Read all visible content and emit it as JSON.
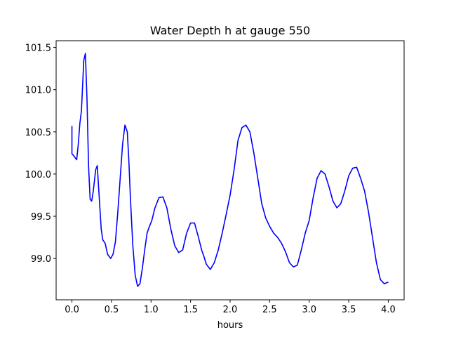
{
  "chart_data": {
    "type": "line",
    "title": "Water Depth h at gauge 550",
    "xlabel": "hours",
    "ylabel": "",
    "xlim": [
      -0.2,
      4.2
    ],
    "ylim": [
      98.51,
      101.58
    ],
    "xticks": [
      0.0,
      0.5,
      1.0,
      1.5,
      2.0,
      2.5,
      3.0,
      3.5,
      4.0
    ],
    "xtick_labels": [
      "0.0",
      "0.5",
      "1.0",
      "1.5",
      "2.0",
      "2.5",
      "3.0",
      "3.5",
      "4.0"
    ],
    "yticks": [
      99.0,
      99.5,
      100.0,
      100.5,
      101.0,
      101.5
    ],
    "ytick_labels": [
      "99.0",
      "99.5",
      "100.0",
      "100.5",
      "101.0",
      "101.5"
    ],
    "grid": false,
    "series": [
      {
        "color": "#0000ff",
        "x": [
          0.0,
          0.0,
          0.02,
          0.06,
          0.08,
          0.1,
          0.12,
          0.15,
          0.17,
          0.19,
          0.21,
          0.23,
          0.25,
          0.27,
          0.3,
          0.32,
          0.34,
          0.37,
          0.39,
          0.42,
          0.45,
          0.49,
          0.52,
          0.55,
          0.58,
          0.61,
          0.64,
          0.67,
          0.7,
          0.72,
          0.74,
          0.77,
          0.8,
          0.83,
          0.86,
          0.89,
          0.92,
          0.95,
          0.98,
          1.01,
          1.05,
          1.1,
          1.15,
          1.2,
          1.25,
          1.3,
          1.35,
          1.4,
          1.45,
          1.5,
          1.55,
          1.6,
          1.64,
          1.67,
          1.7,
          1.75,
          1.8,
          1.85,
          1.9,
          1.95,
          2.0,
          2.05,
          2.1,
          2.15,
          2.2,
          2.25,
          2.3,
          2.35,
          2.4,
          2.45,
          2.5,
          2.55,
          2.6,
          2.65,
          2.7,
          2.75,
          2.8,
          2.85,
          2.9,
          2.95,
          3.0,
          3.05,
          3.1,
          3.15,
          3.2,
          3.25,
          3.3,
          3.35,
          3.4,
          3.45,
          3.5,
          3.55,
          3.6,
          3.65,
          3.7,
          3.75,
          3.8,
          3.85,
          3.9,
          3.95,
          4.0
        ],
        "y": [
          100.57,
          100.24,
          100.22,
          100.17,
          100.35,
          100.6,
          100.75,
          101.35,
          101.43,
          100.9,
          100.1,
          99.7,
          99.68,
          99.8,
          100.05,
          100.1,
          99.8,
          99.35,
          99.22,
          99.18,
          99.05,
          99.0,
          99.05,
          99.2,
          99.55,
          99.95,
          100.35,
          100.58,
          100.5,
          100.15,
          99.7,
          99.15,
          98.8,
          98.67,
          98.7,
          98.88,
          99.1,
          99.3,
          99.38,
          99.45,
          99.6,
          99.72,
          99.73,
          99.6,
          99.35,
          99.15,
          99.07,
          99.1,
          99.3,
          99.42,
          99.42,
          99.25,
          99.1,
          99.02,
          98.93,
          98.87,
          98.95,
          99.1,
          99.3,
          99.52,
          99.75,
          100.05,
          100.4,
          100.55,
          100.58,
          100.5,
          100.25,
          99.95,
          99.65,
          99.48,
          99.38,
          99.3,
          99.25,
          99.18,
          99.08,
          98.95,
          98.9,
          98.92,
          99.1,
          99.3,
          99.45,
          99.72,
          99.95,
          100.04,
          100.0,
          99.85,
          99.68,
          99.6,
          99.65,
          99.8,
          99.98,
          100.07,
          100.08,
          99.95,
          99.8,
          99.55,
          99.25,
          98.95,
          98.75,
          98.7,
          98.72
        ]
      }
    ]
  }
}
